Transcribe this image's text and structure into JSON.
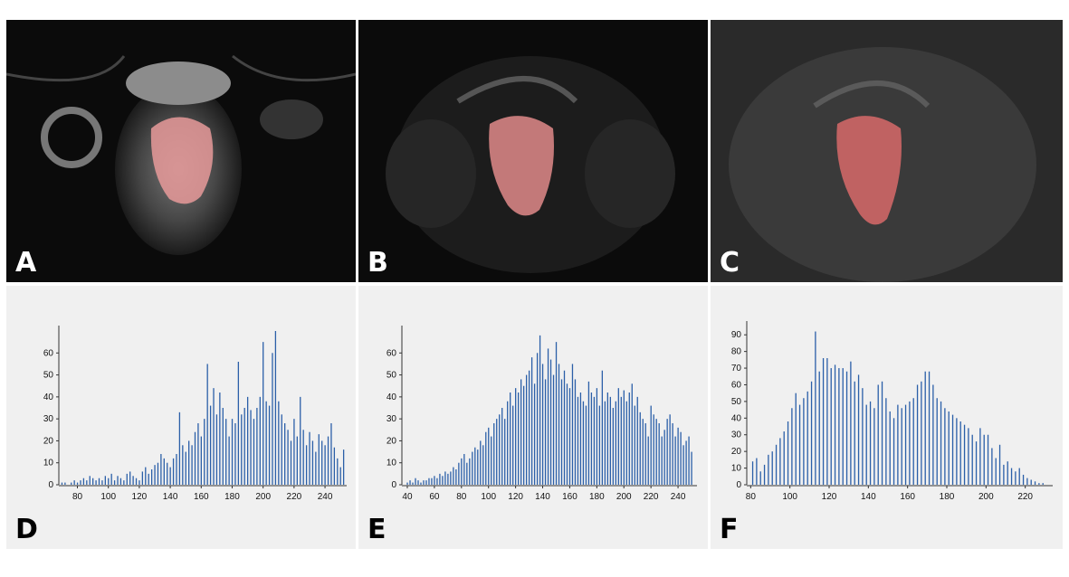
{
  "panel_labels": {
    "A": "A",
    "B": "B",
    "C": "C",
    "D": "D",
    "E": "E",
    "F": "F"
  },
  "colors": {
    "bar": "#2b5fa8",
    "roi": "#e26a6a",
    "background": "#f0f0f0"
  },
  "chart_data": [
    {
      "type": "bar",
      "panel": "D",
      "x_range": [
        68,
        254
      ],
      "ylim": [
        0,
        70
      ],
      "x_ticks": [
        "80",
        "100",
        "120",
        "140",
        "160",
        "180",
        "200",
        "220",
        "240"
      ],
      "y_ticks": [
        "0",
        "10",
        "20",
        "30",
        "40",
        "50",
        "60"
      ],
      "x": [
        70,
        72,
        74,
        76,
        78,
        80,
        82,
        84,
        86,
        88,
        90,
        92,
        94,
        96,
        98,
        100,
        102,
        104,
        106,
        108,
        110,
        112,
        114,
        116,
        118,
        120,
        122,
        124,
        126,
        128,
        130,
        132,
        134,
        136,
        138,
        140,
        142,
        144,
        146,
        148,
        150,
        152,
        154,
        156,
        158,
        160,
        162,
        164,
        166,
        168,
        170,
        172,
        174,
        176,
        178,
        180,
        182,
        184,
        186,
        188,
        190,
        192,
        194,
        196,
        198,
        200,
        202,
        204,
        206,
        208,
        210,
        212,
        214,
        216,
        218,
        220,
        222,
        224,
        226,
        228,
        230,
        232,
        234,
        236,
        238,
        240,
        242,
        244,
        246,
        248,
        250,
        252
      ],
      "values": [
        1,
        1,
        0,
        1,
        2,
        1,
        2,
        3,
        2,
        4,
        3,
        2,
        3,
        2,
        4,
        3,
        5,
        2,
        4,
        3,
        2,
        5,
        6,
        4,
        3,
        2,
        6,
        8,
        5,
        7,
        9,
        10,
        14,
        12,
        10,
        8,
        12,
        14,
        33,
        18,
        15,
        20,
        18,
        24,
        28,
        22,
        30,
        55,
        36,
        44,
        32,
        42,
        35,
        30,
        22,
        30,
        28,
        56,
        32,
        35,
        40,
        34,
        30,
        35,
        40,
        65,
        38,
        36,
        60,
        70,
        38,
        32,
        28,
        25,
        20,
        30,
        22,
        40,
        25,
        18,
        24,
        20,
        15,
        23,
        20,
        18,
        22,
        28,
        17,
        12,
        8,
        16
      ]
    },
    {
      "type": "bar",
      "panel": "E",
      "x_range": [
        36,
        254
      ],
      "ylim": [
        0,
        70
      ],
      "x_ticks": [
        "40",
        "60",
        "80",
        "100",
        "120",
        "140",
        "160",
        "180",
        "200",
        "220",
        "240"
      ],
      "y_ticks": [
        "0",
        "10",
        "20",
        "30",
        "40",
        "50",
        "60"
      ],
      "x": [
        40,
        42,
        44,
        46,
        48,
        50,
        52,
        54,
        56,
        58,
        60,
        62,
        64,
        66,
        68,
        70,
        72,
        74,
        76,
        78,
        80,
        82,
        84,
        86,
        88,
        90,
        92,
        94,
        96,
        98,
        100,
        102,
        104,
        106,
        108,
        110,
        112,
        114,
        116,
        118,
        120,
        122,
        124,
        126,
        128,
        130,
        132,
        134,
        136,
        138,
        140,
        142,
        144,
        146,
        148,
        150,
        152,
        154,
        156,
        158,
        160,
        162,
        164,
        166,
        168,
        170,
        172,
        174,
        176,
        178,
        180,
        182,
        184,
        186,
        188,
        190,
        192,
        194,
        196,
        198,
        200,
        202,
        204,
        206,
        208,
        210,
        212,
        214,
        216,
        218,
        220,
        222,
        224,
        226,
        228,
        230,
        232,
        234,
        236,
        238,
        240,
        242,
        244,
        246,
        248,
        250
      ],
      "values": [
        1,
        2,
        1,
        3,
        2,
        1,
        2,
        2,
        3,
        3,
        4,
        3,
        5,
        4,
        6,
        5,
        6,
        8,
        7,
        10,
        12,
        14,
        10,
        12,
        15,
        17,
        16,
        20,
        18,
        24,
        26,
        22,
        28,
        30,
        32,
        35,
        30,
        38,
        42,
        36,
        44,
        42,
        48,
        45,
        50,
        52,
        58,
        46,
        60,
        68,
        55,
        48,
        62,
        57,
        50,
        65,
        55,
        48,
        52,
        46,
        44,
        55,
        48,
        40,
        42,
        38,
        36,
        47,
        42,
        40,
        44,
        36,
        52,
        38,
        42,
        40,
        35,
        38,
        44,
        40,
        43,
        38,
        42,
        46,
        36,
        40,
        33,
        30,
        28,
        22,
        36,
        32,
        30,
        28,
        22,
        25,
        30,
        32,
        28,
        22,
        26,
        24,
        18,
        20,
        22,
        15
      ],
      "series_values": [
        1,
        2,
        1,
        3,
        2,
        1,
        2,
        3,
        3,
        4,
        3,
        5,
        4,
        6,
        5,
        4,
        6,
        8,
        7,
        10,
        12,
        14,
        10,
        13,
        15,
        17,
        16,
        20,
        18,
        24,
        28,
        26,
        25,
        30,
        32,
        35,
        34,
        40,
        38,
        44,
        44,
        42,
        48,
        52,
        50,
        58,
        46,
        45,
        60,
        68,
        55,
        48,
        62,
        57,
        64,
        50,
        65,
        55,
        48,
        52,
        44,
        56,
        40,
        47,
        45,
        38,
        36,
        47,
        42,
        40,
        44,
        36,
        52,
        38,
        42,
        40,
        43,
        35,
        38,
        44,
        40,
        43,
        38,
        42,
        46,
        45,
        40,
        33,
        30,
        28,
        22,
        36,
        32,
        30,
        28,
        22,
        25,
        30,
        32,
        28,
        22,
        26,
        24,
        18,
        20,
        15
      ]
    },
    {
      "type": "bar",
      "panel": "F",
      "x_range": [
        78,
        234
      ],
      "ylim": [
        0,
        95
      ],
      "x_ticks": [
        "80",
        "100",
        "120",
        "140",
        "160",
        "180",
        "200",
        "220"
      ],
      "y_ticks": [
        "0",
        "10",
        "20",
        "30",
        "40",
        "50",
        "60",
        "70",
        "80",
        "90"
      ],
      "x": [
        81,
        83,
        85,
        87,
        89,
        91,
        93,
        95,
        97,
        99,
        101,
        103,
        105,
        107,
        109,
        111,
        113,
        115,
        117,
        119,
        121,
        123,
        125,
        127,
        129,
        131,
        133,
        135,
        137,
        139,
        141,
        143,
        145,
        147,
        149,
        151,
        153,
        155,
        157,
        159,
        161,
        163,
        165,
        167,
        169,
        171,
        173,
        175,
        177,
        179,
        181,
        183,
        185,
        187,
        189,
        191,
        193,
        195,
        197,
        199,
        201,
        203,
        205,
        207,
        209,
        211,
        213,
        215,
        217,
        219,
        221,
        223,
        225,
        227,
        229
      ],
      "values": [
        14,
        16,
        8,
        12,
        18,
        20,
        24,
        28,
        32,
        38,
        46,
        55,
        48,
        52,
        56,
        62,
        92,
        68,
        76,
        76,
        70,
        72,
        70,
        70,
        68,
        74,
        62,
        66,
        58,
        48,
        50,
        46,
        60,
        62,
        52,
        44,
        40,
        48,
        46,
        48,
        50,
        52,
        60,
        62,
        68,
        68,
        60,
        52,
        50,
        46,
        44,
        42,
        40,
        38,
        36,
        34,
        30,
        26,
        34,
        30,
        30,
        22,
        16,
        24,
        12,
        14,
        10,
        8,
        10,
        6,
        4,
        3,
        2,
        1,
        1
      ]
    }
  ]
}
